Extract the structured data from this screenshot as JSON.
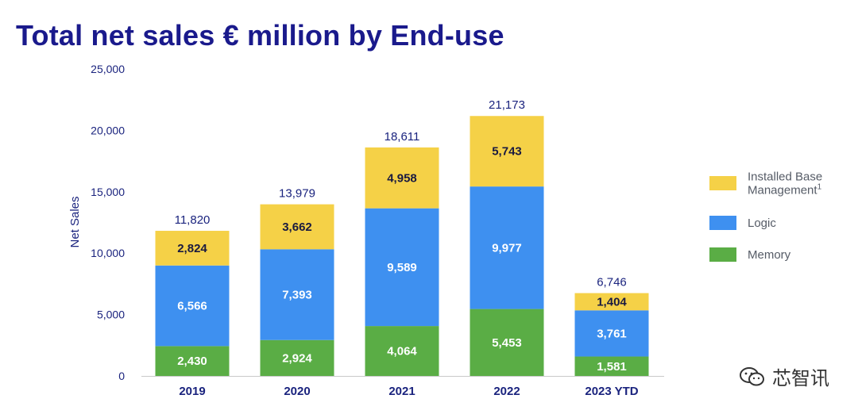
{
  "chart_data": {
    "type": "bar",
    "stacked": true,
    "title": "Total net sales € million by End-use",
    "ylabel": "Net Sales",
    "xlabel": "",
    "ylim": [
      0,
      25000
    ],
    "yticks": [
      0,
      5000,
      10000,
      15000,
      20000,
      25000
    ],
    "ytick_labels": [
      "0",
      "5,000",
      "10,000",
      "15,000",
      "20,000",
      "25,000"
    ],
    "categories": [
      "2019",
      "2020",
      "2021",
      "2022",
      "2023 YTD"
    ],
    "series": [
      {
        "name": "Memory",
        "color": "#5aad45",
        "label_color": "#ffffff",
        "values": [
          2430,
          2924,
          4064,
          5453,
          1581
        ],
        "labels": [
          "2,430",
          "2,924",
          "4,064",
          "5,453",
          "1,581"
        ]
      },
      {
        "name": "Logic",
        "color": "#3e90f0",
        "label_color": "#ffffff",
        "values": [
          6566,
          7393,
          9589,
          9977,
          3761
        ],
        "labels": [
          "6,566",
          "7,393",
          "9,589",
          "9,977",
          "3,761"
        ]
      },
      {
        "name": "Installed Base Management",
        "color": "#f5d147",
        "label_color": "#1a1a40",
        "values": [
          2824,
          3662,
          4958,
          5743,
          1404
        ],
        "labels": [
          "2,824",
          "3,662",
          "4,958",
          "5,743",
          "1,404"
        ]
      }
    ],
    "totals": [
      11820,
      13979,
      18611,
      21173,
      6746
    ],
    "total_labels": [
      "11,820",
      "13,979",
      "18,611",
      "21,173",
      "6,746"
    ],
    "legend": [
      {
        "series": "Installed Base Management",
        "lines": [
          "Installed Base",
          "Management"
        ],
        "superscript": "1"
      },
      {
        "series": "Logic",
        "lines": [
          "Logic"
        ],
        "superscript": ""
      },
      {
        "series": "Memory",
        "lines": [
          "Memory"
        ],
        "superscript": ""
      }
    ],
    "legend_position": "right",
    "grid": false
  },
  "watermark": {
    "icon": "wechat-icon",
    "text": "芯智讯"
  }
}
